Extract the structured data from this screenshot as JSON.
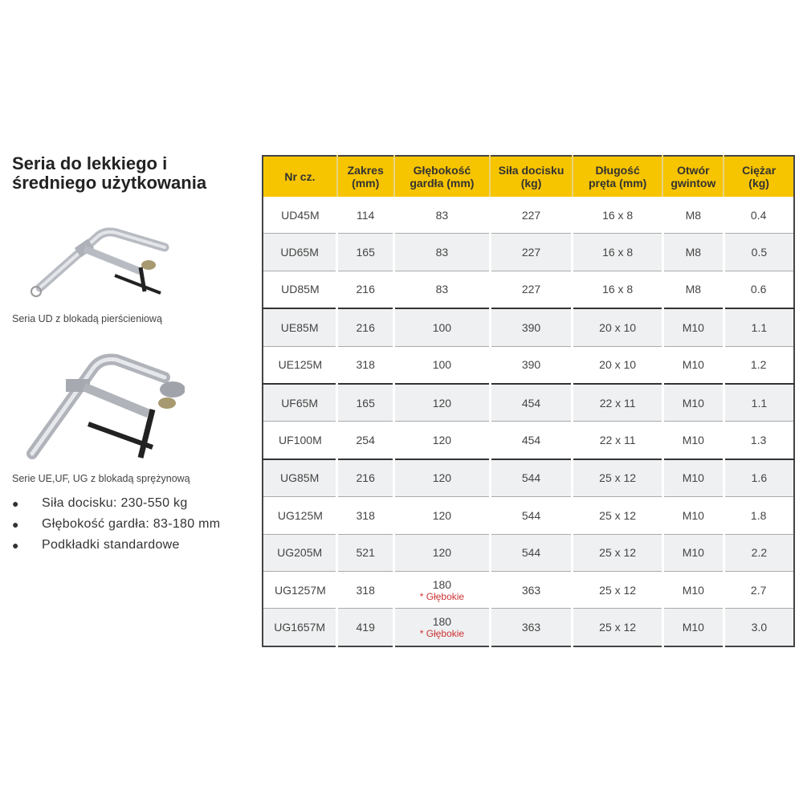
{
  "title_lines": [
    "Seria do lekkiego i",
    "średniego użytkowania"
  ],
  "captions": {
    "ud": "Seria UD z blokadą pierścieniową",
    "ue": "Serie UE,UF, UG z blokadą sprężynową"
  },
  "bullets": [
    "Siła docisku: 230-550 kg",
    "Głębokość gardła: 83-180 mm",
    "Podkładki standardowe"
  ],
  "colors": {
    "header": "#f7c400",
    "deep_note": "#cc3333"
  },
  "table": {
    "headers": [
      [
        "Nr cz.",
        ""
      ],
      [
        "Zakres",
        "(mm)"
      ],
      [
        "Głębokość",
        "gardła (mm)"
      ],
      [
        "Siła docisku",
        "(kg)"
      ],
      [
        "Długość",
        "pręta (mm)"
      ],
      [
        "Otwór",
        "gwintow"
      ],
      [
        "Ciężar",
        "(kg)"
      ]
    ],
    "rows": [
      {
        "nr": "UD45M",
        "zakres": "114",
        "glebokosc": "83",
        "note": "",
        "sila": "227",
        "dlugosc": "16 x 8",
        "otwor": "M8",
        "ciezar": "0.4"
      },
      {
        "nr": "UD65M",
        "zakres": "165",
        "glebokosc": "83",
        "note": "",
        "sila": "227",
        "dlugosc": "16 x 8",
        "otwor": "M8",
        "ciezar": "0.5"
      },
      {
        "nr": "UD85M",
        "zakres": "216",
        "glebokosc": "83",
        "note": "",
        "sila": "227",
        "dlugosc": "16 x 8",
        "otwor": "M8",
        "ciezar": "0.6"
      },
      {
        "nr": "UE85M",
        "zakres": "216",
        "glebokosc": "100",
        "note": "",
        "sila": "390",
        "dlugosc": "20 x 10",
        "otwor": "M10",
        "ciezar": "1.1"
      },
      {
        "nr": "UE125M",
        "zakres": "318",
        "glebokosc": "100",
        "note": "",
        "sila": "390",
        "dlugosc": "20 x 10",
        "otwor": "M10",
        "ciezar": "1.2"
      },
      {
        "nr": "UF65M",
        "zakres": "165",
        "glebokosc": "120",
        "note": "",
        "sila": "454",
        "dlugosc": "22 x 11",
        "otwor": "M10",
        "ciezar": "1.1"
      },
      {
        "nr": "UF100M",
        "zakres": "254",
        "glebokosc": "120",
        "note": "",
        "sila": "454",
        "dlugosc": "22 x 11",
        "otwor": "M10",
        "ciezar": "1.3"
      },
      {
        "nr": "UG85M",
        "zakres": "216",
        "glebokosc": "120",
        "note": "",
        "sila": "544",
        "dlugosc": "25 x 12",
        "otwor": "M10",
        "ciezar": "1.6"
      },
      {
        "nr": "UG125M",
        "zakres": "318",
        "glebokosc": "120",
        "note": "",
        "sila": "544",
        "dlugosc": "25 x 12",
        "otwor": "M10",
        "ciezar": "1.8"
      },
      {
        "nr": "UG205M",
        "zakres": "521",
        "glebokosc": "120",
        "note": "",
        "sila": "544",
        "dlugosc": "25 x 12",
        "otwor": "M10",
        "ciezar": "2.2"
      },
      {
        "nr": "UG1257M",
        "zakres": "318",
        "glebokosc": "180",
        "note": "Głębokie",
        "sila": "363",
        "dlugosc": "25 x 12",
        "otwor": "M10",
        "ciezar": "2.7"
      },
      {
        "nr": "UG1657M",
        "zakres": "419",
        "glebokosc": "180",
        "note": "Głębokie",
        "sila": "363",
        "dlugosc": "25 x 12",
        "otwor": "M10",
        "ciezar": "3.0"
      }
    ]
  }
}
